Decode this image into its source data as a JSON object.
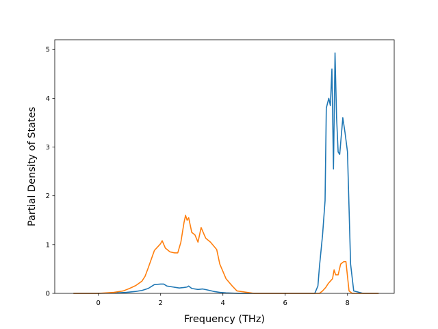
{
  "chart_data": {
    "type": "line",
    "title": "",
    "xlabel": "Frequency (THz)",
    "ylabel": "Partial Density of States",
    "xlim": [
      -1.4,
      9.5
    ],
    "ylim": [
      0,
      5.2
    ],
    "xticks": [
      0,
      2,
      4,
      6,
      8
    ],
    "yticks": [
      0,
      1,
      2,
      3,
      4,
      5
    ],
    "xtick_labels": [
      "0",
      "2",
      "4",
      "6",
      "8"
    ],
    "ytick_labels": [
      "0",
      "1",
      "2",
      "3",
      "4",
      "5"
    ],
    "grid": false,
    "legend": "none",
    "series": [
      {
        "color": "#1f77b4",
        "x": [
          -0.8,
          0.0,
          0.6,
          0.9,
          1.2,
          1.4,
          1.6,
          1.7,
          1.8,
          2.0,
          2.1,
          2.2,
          2.4,
          2.6,
          2.75,
          2.85,
          2.9,
          3.0,
          3.2,
          3.35,
          3.5,
          3.7,
          3.9,
          4.1,
          4.5,
          6.5,
          6.95,
          7.05,
          7.1,
          7.2,
          7.28,
          7.32,
          7.4,
          7.45,
          7.5,
          7.55,
          7.6,
          7.65,
          7.7,
          7.75,
          7.85,
          7.92,
          8.0,
          8.1,
          8.2,
          8.5,
          9.0
        ],
        "values": [
          0.0,
          0.0,
          0.01,
          0.02,
          0.04,
          0.06,
          0.1,
          0.14,
          0.18,
          0.19,
          0.19,
          0.15,
          0.13,
          0.11,
          0.12,
          0.13,
          0.15,
          0.1,
          0.08,
          0.09,
          0.07,
          0.04,
          0.02,
          0.01,
          0.0,
          0.0,
          0.0,
          0.15,
          0.55,
          1.2,
          1.9,
          3.8,
          4.0,
          3.85,
          4.6,
          2.55,
          4.93,
          3.6,
          2.9,
          2.85,
          3.6,
          3.3,
          2.9,
          0.6,
          0.05,
          0.0,
          0.0
        ]
      },
      {
        "color": "#ff7f0e",
        "x": [
          -0.8,
          0.0,
          0.5,
          0.8,
          1.0,
          1.2,
          1.4,
          1.5,
          1.6,
          1.7,
          1.8,
          1.9,
          2.0,
          2.05,
          2.15,
          2.3,
          2.45,
          2.55,
          2.65,
          2.75,
          2.8,
          2.85,
          2.9,
          3.0,
          3.1,
          3.2,
          3.3,
          3.4,
          3.45,
          3.6,
          3.8,
          3.9,
          4.0,
          4.1,
          4.3,
          4.45,
          5.0,
          7.1,
          7.2,
          7.3,
          7.38,
          7.45,
          7.52,
          7.57,
          7.62,
          7.7,
          7.78,
          7.88,
          7.95,
          8.05,
          8.15,
          8.25,
          8.5,
          9.0
        ],
        "values": [
          0.0,
          0.0,
          0.02,
          0.05,
          0.1,
          0.16,
          0.25,
          0.35,
          0.52,
          0.7,
          0.88,
          0.95,
          1.02,
          1.08,
          0.93,
          0.85,
          0.83,
          0.83,
          1.05,
          1.45,
          1.6,
          1.5,
          1.55,
          1.25,
          1.2,
          1.05,
          1.35,
          1.2,
          1.13,
          1.05,
          0.9,
          0.6,
          0.45,
          0.3,
          0.15,
          0.05,
          0.0,
          0.0,
          0.05,
          0.12,
          0.2,
          0.25,
          0.3,
          0.48,
          0.38,
          0.38,
          0.6,
          0.65,
          0.65,
          0.05,
          0.0,
          0.0,
          0.0,
          0.0
        ]
      }
    ]
  }
}
